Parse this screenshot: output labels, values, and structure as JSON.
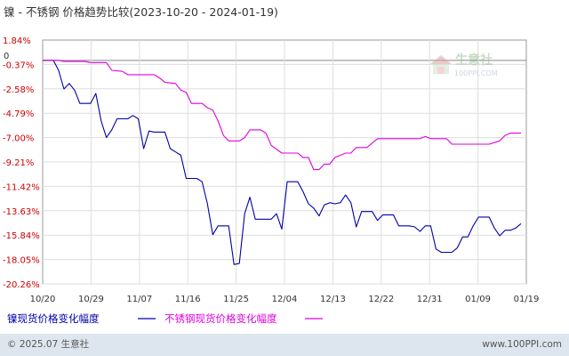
{
  "title": "镍 - 不锈钢 价格趋势比较(2023-10-20 - 2024-01-19)",
  "watermark": {
    "brand": "生意社",
    "site": "100PPI.COM"
  },
  "footer": {
    "left": "© 2025.07 生意社",
    "right": "www.100PPI.com"
  },
  "colors": {
    "nickel": "#0000aa",
    "stainless": "#dd00dd",
    "positive_tick": "#cc0000",
    "negative_tick": "#cc0000",
    "zero_tick": "#333333",
    "footer_bar": "#dde6ee"
  },
  "chart_data": {
    "type": "line",
    "title": "镍 - 不锈钢 价格趋势比较(2023-10-20 - 2024-01-19)",
    "x_tick_labels": [
      "10/20",
      "10/29",
      "11/07",
      "11/16",
      "11/25",
      "12/04",
      "12/13",
      "12/22",
      "12/31",
      "01/09",
      "01/19"
    ],
    "y_tick_labels": [
      "1.84%",
      "0",
      "-0.37%",
      "-2.58%",
      "-4.79%",
      "-7.00%",
      "-9.21%",
      "-11.42%",
      "-13.63%",
      "-15.84%",
      "-18.05%",
      "-20.26%"
    ],
    "ylim": [
      -20.26,
      1.84
    ],
    "xlim_days": [
      0,
      91
    ],
    "grid": true,
    "legend_position": "bottom-left",
    "series": [
      {
        "name": "镍现货价格变化幅度",
        "color": "#0000aa",
        "points": [
          [
            0,
            0
          ],
          [
            2,
            0
          ],
          [
            3,
            -0.9
          ],
          [
            4,
            -2.6
          ],
          [
            5,
            -2.1
          ],
          [
            6,
            -2.7
          ],
          [
            7,
            -3.9
          ],
          [
            8,
            -3.9
          ],
          [
            9,
            -3.9
          ],
          [
            10,
            -3.0
          ],
          [
            11,
            -5.5
          ],
          [
            12,
            -7.0
          ],
          [
            13,
            -6.3
          ],
          [
            14,
            -5.3
          ],
          [
            15,
            -5.3
          ],
          [
            16,
            -5.3
          ],
          [
            17,
            -5.0
          ],
          [
            18,
            -5.3
          ],
          [
            19,
            -8.0
          ],
          [
            20,
            -6.4
          ],
          [
            21,
            -6.5
          ],
          [
            22,
            -6.5
          ],
          [
            23,
            -6.5
          ],
          [
            24,
            -8.0
          ],
          [
            25,
            -8.3
          ],
          [
            26,
            -8.6
          ],
          [
            27,
            -10.7
          ],
          [
            28,
            -10.7
          ],
          [
            29,
            -10.7
          ],
          [
            30,
            -11.0
          ],
          [
            31,
            -13.0
          ],
          [
            32,
            -15.8
          ],
          [
            33,
            -15.0
          ],
          [
            34,
            -15.0
          ],
          [
            35,
            -15.0
          ],
          [
            36,
            -18.5
          ],
          [
            37,
            -18.4
          ],
          [
            38,
            -13.9
          ],
          [
            39,
            -12.4
          ],
          [
            40,
            -14.4
          ],
          [
            41,
            -14.4
          ],
          [
            42,
            -14.4
          ],
          [
            43,
            -14.4
          ],
          [
            44,
            -13.9
          ],
          [
            45,
            -15.3
          ],
          [
            46,
            -11.0
          ],
          [
            47,
            -11.0
          ],
          [
            48,
            -11.0
          ],
          [
            49,
            -11.9
          ],
          [
            50,
            -13.0
          ],
          [
            51,
            -13.4
          ],
          [
            52,
            -14.1
          ],
          [
            53,
            -13.1
          ],
          [
            54,
            -12.9
          ],
          [
            55,
            -13.0
          ],
          [
            56,
            -12.9
          ],
          [
            57,
            -12.2
          ],
          [
            58,
            -12.9
          ],
          [
            59,
            -15.1
          ],
          [
            60,
            -13.7
          ],
          [
            61,
            -13.7
          ],
          [
            62,
            -13.7
          ],
          [
            63,
            -14.5
          ],
          [
            64,
            -14.0
          ],
          [
            65,
            -14.0
          ],
          [
            66,
            -14.0
          ],
          [
            67,
            -15.0
          ],
          [
            68,
            -15.0
          ],
          [
            69,
            -15.0
          ],
          [
            70,
            -15.1
          ],
          [
            71,
            -15.5
          ],
          [
            72,
            -15.0
          ],
          [
            73,
            -15.0
          ],
          [
            74,
            -17.1
          ],
          [
            75,
            -17.4
          ],
          [
            76,
            -17.4
          ],
          [
            77,
            -17.4
          ],
          [
            78,
            -17.0
          ],
          [
            79,
            -16.0
          ],
          [
            80,
            -16.0
          ],
          [
            81,
            -15.0
          ],
          [
            82,
            -14.2
          ],
          [
            83,
            -14.2
          ],
          [
            84,
            -14.2
          ],
          [
            85,
            -15.2
          ],
          [
            86,
            -15.9
          ],
          [
            87,
            -15.4
          ],
          [
            88,
            -15.4
          ],
          [
            89,
            -15.2
          ],
          [
            90,
            -14.8
          ]
        ]
      },
      {
        "name": "不锈钢现货价格变化幅度",
        "color": "#dd00dd",
        "points": [
          [
            0,
            0
          ],
          [
            2,
            0
          ],
          [
            3,
            0
          ],
          [
            4,
            -0.1
          ],
          [
            5,
            -0.1
          ],
          [
            6,
            -0.1
          ],
          [
            8,
            -0.1
          ],
          [
            9,
            -0.2
          ],
          [
            12,
            -0.2
          ],
          [
            13,
            -0.9
          ],
          [
            15,
            -1.0
          ],
          [
            16,
            -1.3
          ],
          [
            21,
            -1.3
          ],
          [
            22,
            -1.6
          ],
          [
            23,
            -2.0
          ],
          [
            25,
            -2.1
          ],
          [
            26,
            -2.7
          ],
          [
            27,
            -2.9
          ],
          [
            28,
            -3.9
          ],
          [
            30,
            -3.9
          ],
          [
            31,
            -4.3
          ],
          [
            32,
            -4.5
          ],
          [
            33,
            -5.5
          ],
          [
            34,
            -6.8
          ],
          [
            35,
            -7.3
          ],
          [
            37,
            -7.3
          ],
          [
            38,
            -7.0
          ],
          [
            39,
            -6.3
          ],
          [
            40,
            -6.3
          ],
          [
            41,
            -6.3
          ],
          [
            42,
            -6.6
          ],
          [
            43,
            -7.7
          ],
          [
            45,
            -8.4
          ],
          [
            48,
            -8.4
          ],
          [
            49,
            -8.8
          ],
          [
            50,
            -8.8
          ],
          [
            51,
            -9.9
          ],
          [
            52,
            -9.9
          ],
          [
            53,
            -9.4
          ],
          [
            54,
            -9.4
          ],
          [
            55,
            -8.8
          ],
          [
            57,
            -8.4
          ],
          [
            58,
            -8.4
          ],
          [
            59,
            -7.9
          ],
          [
            61,
            -7.9
          ],
          [
            62,
            -7.5
          ],
          [
            63,
            -7.1
          ],
          [
            65,
            -7.1
          ],
          [
            71,
            -7.1
          ],
          [
            72,
            -6.9
          ],
          [
            73,
            -7.1
          ],
          [
            76,
            -7.1
          ],
          [
            77,
            -7.6
          ],
          [
            84,
            -7.6
          ],
          [
            86,
            -7.3
          ],
          [
            87,
            -6.8
          ],
          [
            88,
            -6.6
          ],
          [
            90,
            -6.6
          ]
        ]
      }
    ]
  }
}
